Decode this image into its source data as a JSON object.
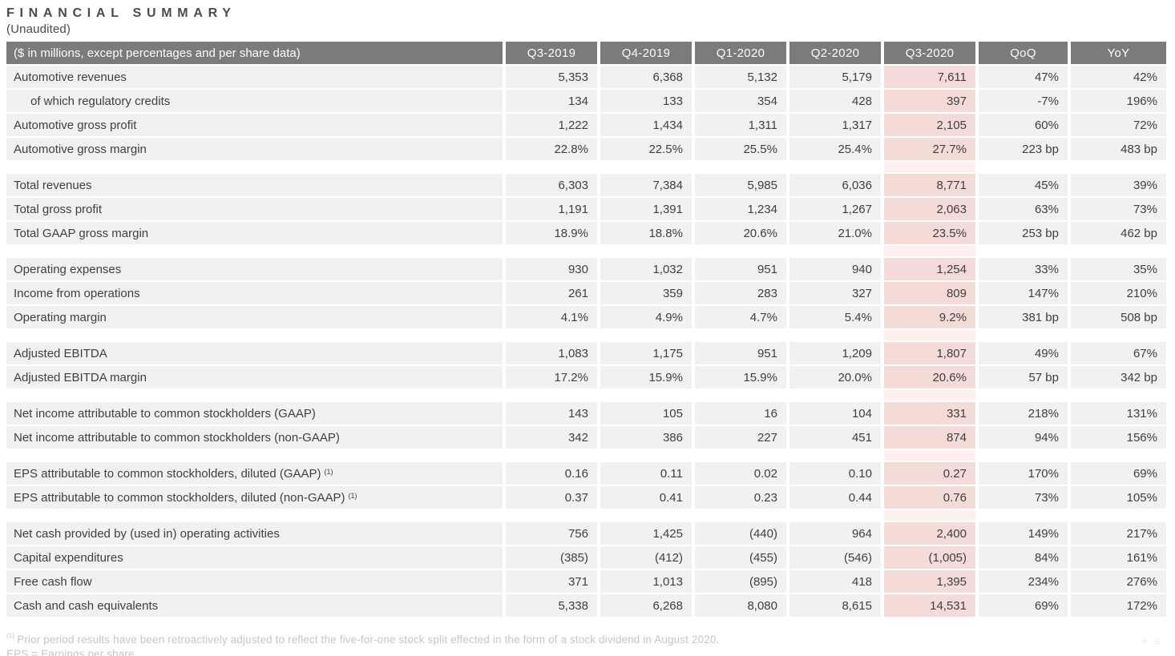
{
  "title": "FINANCIAL SUMMARY",
  "subtitle": "(Unaudited)",
  "table": {
    "header_label": "($ in millions, except percentages and per share data)",
    "columns": [
      "Q3-2019",
      "Q4-2019",
      "Q1-2020",
      "Q2-2020",
      "Q3-2020",
      "QoQ",
      "YoY"
    ],
    "highlight_column": "Q3-2020",
    "highlight_column_index": 4,
    "sections": [
      {
        "rows": [
          {
            "label": "Automotive revenues",
            "values": [
              "5,353",
              "6,368",
              "5,132",
              "5,179",
              "7,611",
              "47%",
              "42%"
            ]
          },
          {
            "label": "of which regulatory credits",
            "indent": true,
            "values": [
              "134",
              "133",
              "354",
              "428",
              "397",
              "-7%",
              "196%"
            ]
          },
          {
            "label": "Automotive gross profit",
            "values": [
              "1,222",
              "1,434",
              "1,311",
              "1,317",
              "2,105",
              "60%",
              "72%"
            ]
          },
          {
            "label": "Automotive gross margin",
            "values": [
              "22.8%",
              "22.5%",
              "25.5%",
              "25.4%",
              "27.7%",
              "223 bp",
              "483 bp"
            ]
          }
        ]
      },
      {
        "rows": [
          {
            "label": "Total revenues",
            "values": [
              "6,303",
              "7,384",
              "5,985",
              "6,036",
              "8,771",
              "45%",
              "39%"
            ]
          },
          {
            "label": "Total gross profit",
            "values": [
              "1,191",
              "1,391",
              "1,234",
              "1,267",
              "2,063",
              "63%",
              "73%"
            ]
          },
          {
            "label": "Total GAAP gross margin",
            "values": [
              "18.9%",
              "18.8%",
              "20.6%",
              "21.0%",
              "23.5%",
              "253 bp",
              "462 bp"
            ]
          }
        ]
      },
      {
        "rows": [
          {
            "label": "Operating expenses",
            "values": [
              "930",
              "1,032",
              "951",
              "940",
              "1,254",
              "33%",
              "35%"
            ]
          },
          {
            "label": "Income from operations",
            "values": [
              "261",
              "359",
              "283",
              "327",
              "809",
              "147%",
              "210%"
            ]
          },
          {
            "label": "Operating margin",
            "values": [
              "4.1%",
              "4.9%",
              "4.7%",
              "5.4%",
              "9.2%",
              "381 bp",
              "508 bp"
            ]
          }
        ]
      },
      {
        "rows": [
          {
            "label": "Adjusted EBITDA",
            "values": [
              "1,083",
              "1,175",
              "951",
              "1,209",
              "1,807",
              "49%",
              "67%"
            ]
          },
          {
            "label": "Adjusted EBITDA margin",
            "values": [
              "17.2%",
              "15.9%",
              "15.9%",
              "20.0%",
              "20.6%",
              "57 bp",
              "342 bp"
            ]
          }
        ]
      },
      {
        "rows": [
          {
            "label": "Net income attributable to common stockholders (GAAP)",
            "values": [
              "143",
              "105",
              "16",
              "104",
              "331",
              "218%",
              "131%"
            ]
          },
          {
            "label": "Net income attributable to common stockholders (non-GAAP)",
            "values": [
              "342",
              "386",
              "227",
              "451",
              "874",
              "94%",
              "156%"
            ]
          }
        ]
      },
      {
        "rows": [
          {
            "label": "EPS attributable to common stockholders, diluted (GAAP)",
            "footnote": "(1)",
            "values": [
              "0.16",
              "0.11",
              "0.02",
              "0.10",
              "0.27",
              "170%",
              "69%"
            ]
          },
          {
            "label": "EPS attributable to common stockholders, diluted (non-GAAP)",
            "footnote": "(1)",
            "values": [
              "0.37",
              "0.41",
              "0.23",
              "0.44",
              "0.76",
              "73%",
              "105%"
            ]
          }
        ]
      },
      {
        "rows": [
          {
            "label": "Net cash provided by (used in) operating activities",
            "values": [
              "756",
              "1,425",
              "(440)",
              "964",
              "2,400",
              "149%",
              "217%"
            ]
          },
          {
            "label": "Capital expenditures",
            "values": [
              "(385)",
              "(412)",
              "(455)",
              "(546)",
              "(1,005)",
              "84%",
              "161%"
            ]
          },
          {
            "label": "Free cash flow",
            "values": [
              "371",
              "1,013",
              "(895)",
              "418",
              "1,395",
              "234%",
              "276%"
            ]
          },
          {
            "label": "Cash and cash equivalents",
            "values": [
              "5,338",
              "6,268",
              "8,080",
              "8,615",
              "14,531",
              "69%",
              "172%"
            ]
          }
        ]
      }
    ]
  },
  "footnotes": {
    "note1_marker": "(1)",
    "note1_text": "Prior period results have been retroactively adjusted to reflect the five-for-one stock split effected in the form of a stock dividend in August 2020.",
    "note2_text": "EPS = Earnings per share"
  },
  "corner_icons": {
    "plus_glyph": "+",
    "lines_glyph": "≡"
  },
  "colors": {
    "header_bg": "#7c7a7a",
    "header_text": "#fdfdfd",
    "row_bg": "#f2f1f1",
    "highlight_bg": "#f4dbd8",
    "highlight_gap_bg": "#fcefed",
    "body_text": "#3f3f3f",
    "footnote_text": "#c6c6c6"
  }
}
